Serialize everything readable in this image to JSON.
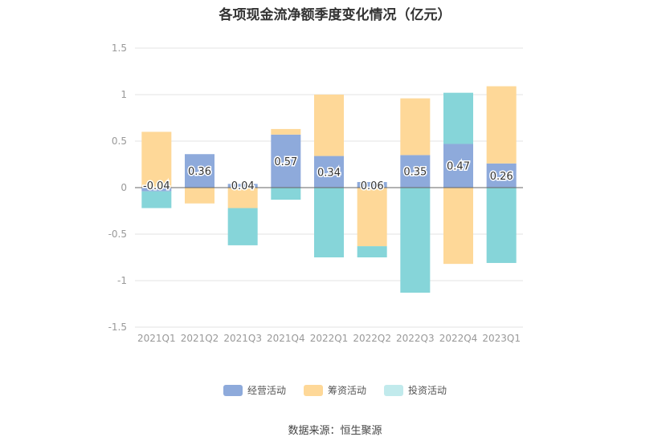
{
  "chart_data": {
    "type": "bar",
    "stacked": true,
    "title": "各项现金流净额季度变化情况（亿元）",
    "categories": [
      "2021Q1",
      "2021Q2",
      "2021Q3",
      "2021Q4",
      "2022Q1",
      "2022Q2",
      "2022Q3",
      "2022Q4",
      "2023Q1"
    ],
    "series": [
      {
        "name": "经营活动",
        "color": "#8eaadb",
        "values": [
          -0.04,
          0.36,
          0.04,
          0.57,
          0.34,
          0.06,
          0.35,
          0.47,
          0.26
        ]
      },
      {
        "name": "筹资活动",
        "color": "#fed898",
        "values": [
          0.6,
          -0.17,
          -0.22,
          0.06,
          0.66,
          -0.63,
          0.61,
          -0.82,
          0.83
        ]
      },
      {
        "name": "投资活动",
        "color": "#86d5d9",
        "values": [
          -0.18,
          0.0,
          -0.4,
          -0.13,
          -0.75,
          -0.12,
          -1.13,
          0.55,
          -0.81
        ]
      }
    ],
    "data_labels": [
      "-0.04",
      "0.36",
      "0.04",
      "0.57",
      "0.34",
      "0.06",
      "0.35",
      "0.47",
      "0.26"
    ],
    "ylim": [
      -1.5,
      1.5
    ],
    "yticks": [
      -1.5,
      -1,
      -0.5,
      0,
      0.5,
      1,
      1.5
    ],
    "ytick_labels": [
      "-1.5",
      "-1",
      "-0.5",
      "0",
      "0.5",
      "1",
      "1.5"
    ],
    "grid": true,
    "legend_position": "bottom-center",
    "legend": [
      {
        "label": "经营活动",
        "color": "#8eaadb"
      },
      {
        "label": "筹资活动",
        "color": "#fed898"
      },
      {
        "label": "投资活动",
        "color": "#c1eaec"
      }
    ]
  },
  "source_text": "数据来源：恒生聚源"
}
